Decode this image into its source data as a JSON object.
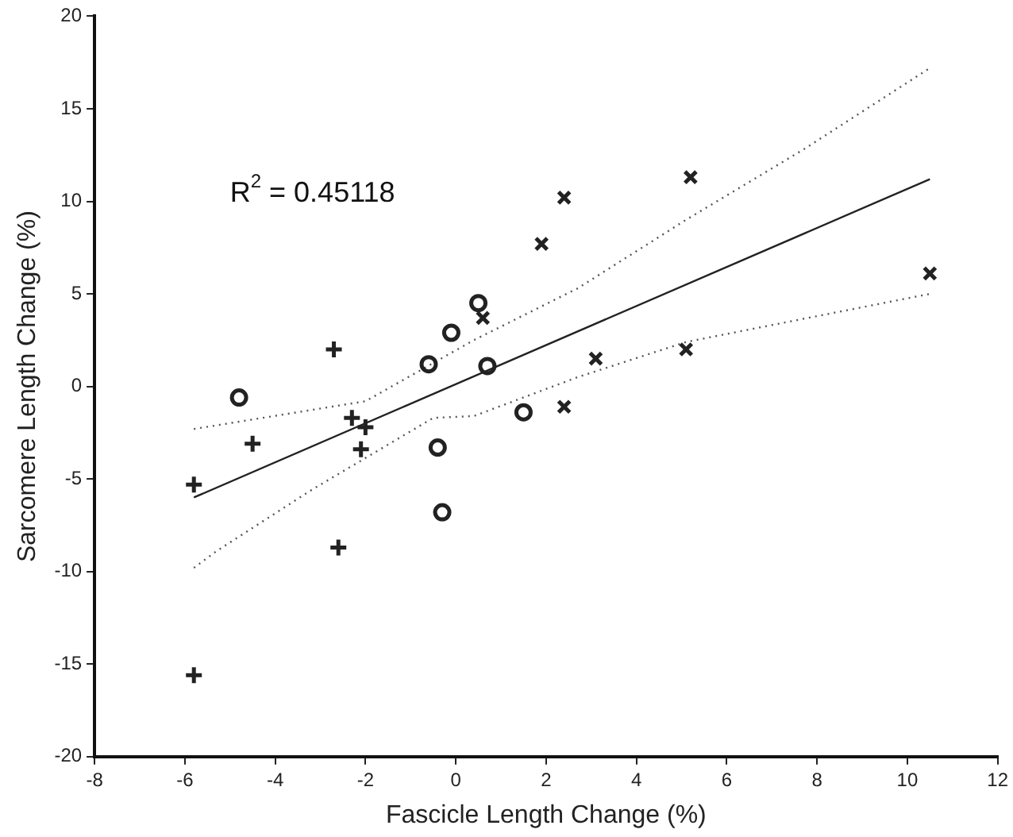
{
  "chart_data": {
    "type": "scatter",
    "xlabel": "Fascicle Length Change (%)",
    "ylabel": "Sarcomere Length Change (%)",
    "xlim": [
      -8,
      12
    ],
    "xticks": [
      -8,
      -6,
      -4,
      -2,
      0,
      2,
      4,
      6,
      8,
      10,
      12
    ],
    "ylim": [
      -20,
      20
    ],
    "yticks": [
      -20,
      -15,
      -10,
      -5,
      0,
      5,
      10,
      15,
      20
    ],
    "grid": false,
    "legend": false,
    "annotations": [
      "R$^{2}$ = 0.45118"
    ],
    "series": [
      {
        "marker": "cross",
        "color": "#222222",
        "x": [
          -2.7,
          -4.5,
          -5.8,
          -2.3,
          -2.0,
          -2.1,
          -2.6,
          -5.8
        ],
        "values": [
          2.0,
          -3.1,
          -5.3,
          -1.7,
          -2.2,
          -3.4,
          -8.7,
          -15.6
        ]
      },
      {
        "marker": "circle",
        "color": "#222222",
        "x": [
          -4.8,
          0.5,
          -0.1,
          -0.6,
          0.7,
          -0.4,
          -0.3,
          1.5
        ],
        "values": [
          -0.6,
          4.5,
          2.9,
          1.2,
          1.1,
          -3.3,
          -6.8,
          -1.4
        ]
      },
      {
        "marker": "x",
        "color": "#222222",
        "x": [
          0.6,
          2.4,
          1.9,
          5.2,
          10.5,
          3.1,
          5.1,
          2.4
        ],
        "values": [
          3.7,
          10.2,
          7.7,
          11.3,
          6.1,
          1.5,
          2.0,
          -1.1
        ]
      },
      {
        "type": "line",
        "marker": "none",
        "line_style": "solid",
        "color": "#222222",
        "x": [
          -5.8,
          10.5
        ],
        "values": [
          -6.0,
          11.2
        ]
      },
      {
        "type": "line",
        "marker": "none",
        "line_style": "dotted",
        "color": "#555555",
        "x": [
          -5.8,
          -2.0,
          0.4,
          2.7,
          5.1,
          7.7,
          10.5
        ],
        "values": [
          -2.3,
          -0.8,
          2.5,
          5.3,
          9.0,
          12.8,
          17.2
        ]
      },
      {
        "type": "line",
        "marker": "none",
        "line_style": "dotted",
        "color": "#555555",
        "x": [
          -5.8,
          -5.3,
          -3.2,
          -0.5,
          0.4,
          2.7,
          5.1,
          10.5
        ],
        "values": [
          -9.8,
          -8.9,
          -5.6,
          -1.7,
          -1.6,
          0.5,
          2.4,
          5.0
        ]
      }
    ]
  }
}
